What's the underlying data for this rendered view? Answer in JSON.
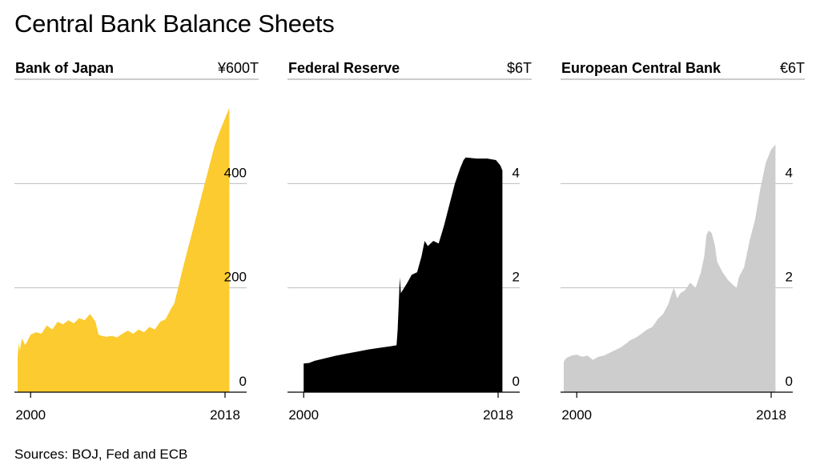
{
  "title": "Central Bank Balance Sheets",
  "source": "Sources: BOJ, Fed and ECB",
  "chart_data": [
    {
      "type": "area",
      "title": "Bank of Japan",
      "unit": "¥600T",
      "color": "#FCCB2F",
      "x_ticks": [
        "2000",
        "2018"
      ],
      "y_ticks": [
        "0",
        "200",
        "400"
      ],
      "ylim": [
        0,
        600
      ],
      "xlim": [
        1998.5,
        2020
      ],
      "x": [
        1998.8,
        1998.9,
        1999.0,
        1999.2,
        1999.5,
        2000.0,
        2000.5,
        2001.0,
        2001.5,
        2002.0,
        2002.5,
        2003.0,
        2003.5,
        2004.0,
        2004.5,
        2005.0,
        2005.5,
        2006.0,
        2006.3,
        2006.6,
        2007.0,
        2007.5,
        2008.0,
        2008.5,
        2009.0,
        2009.5,
        2010.0,
        2010.5,
        2011.0,
        2011.5,
        2012.0,
        2012.5,
        2013.0,
        2013.3,
        2013.6,
        2014.0,
        2014.5,
        2015.0,
        2015.5,
        2016.0,
        2016.5,
        2017.0,
        2017.5,
        2018.0,
        2018.4
      ],
      "values": [
        68,
        95,
        80,
        103,
        90,
        110,
        115,
        112,
        128,
        120,
        135,
        130,
        138,
        132,
        142,
        138,
        150,
        135,
        110,
        108,
        106,
        108,
        105,
        112,
        118,
        112,
        120,
        115,
        125,
        120,
        135,
        140,
        160,
        170,
        195,
        230,
        270,
        310,
        350,
        390,
        430,
        470,
        500,
        525,
        545
      ]
    },
    {
      "type": "area",
      "title": "Federal Reserve",
      "unit": "$6T",
      "color": "#000000",
      "x_ticks": [
        "2000",
        "2018"
      ],
      "y_ticks": [
        "0",
        "2",
        "4"
      ],
      "ylim": [
        0,
        6
      ],
      "xlim": [
        1998.5,
        2020
      ],
      "x": [
        2000.0,
        2000.5,
        2001.0,
        2002.0,
        2003.0,
        2004.0,
        2005.0,
        2006.0,
        2007.0,
        2008.0,
        2008.6,
        2008.7,
        2008.9,
        2009.0,
        2009.3,
        2009.6,
        2010.0,
        2010.5,
        2010.9,
        2011.2,
        2011.5,
        2012.0,
        2012.5,
        2013.0,
        2013.5,
        2014.0,
        2014.5,
        2014.8,
        2015.0,
        2016.0,
        2017.0,
        2017.8,
        2018.2,
        2018.4
      ],
      "values": [
        0.55,
        0.56,
        0.6,
        0.65,
        0.7,
        0.74,
        0.78,
        0.82,
        0.85,
        0.88,
        0.9,
        1.2,
        2.2,
        1.9,
        2.0,
        2.1,
        2.25,
        2.3,
        2.6,
        2.9,
        2.8,
        2.9,
        2.85,
        3.2,
        3.6,
        4.0,
        4.3,
        4.45,
        4.5,
        4.48,
        4.48,
        4.45,
        4.35,
        4.25
      ]
    },
    {
      "type": "area",
      "title": "European Central Bank",
      "unit": "€6T",
      "color": "#CDCDCD",
      "x_ticks": [
        "2000",
        "2018"
      ],
      "y_ticks": [
        "0",
        "2",
        "4"
      ],
      "ylim": [
        0,
        6
      ],
      "xlim": [
        1998.5,
        2020
      ],
      "x": [
        1998.8,
        1999.0,
        1999.5,
        2000.0,
        2000.5,
        2001.0,
        2001.5,
        2002.0,
        2002.5,
        2003.0,
        2003.5,
        2004.0,
        2004.5,
        2005.0,
        2005.5,
        2006.0,
        2006.5,
        2007.0,
        2007.5,
        2008.0,
        2008.5,
        2008.8,
        2009.0,
        2009.3,
        2009.6,
        2010.0,
        2010.5,
        2011.0,
        2011.5,
        2011.8,
        2012.0,
        2012.2,
        2012.5,
        2012.8,
        2013.0,
        2013.5,
        2014.0,
        2014.5,
        2014.8,
        2015.0,
        2015.5,
        2016.0,
        2016.5,
        2017.0,
        2017.5,
        2018.0,
        2018.4
      ],
      "values": [
        0.58,
        0.65,
        0.7,
        0.72,
        0.68,
        0.7,
        0.62,
        0.68,
        0.7,
        0.75,
        0.8,
        0.85,
        0.92,
        1.0,
        1.05,
        1.12,
        1.2,
        1.25,
        1.4,
        1.5,
        1.7,
        1.9,
        2.0,
        1.8,
        1.9,
        1.95,
        2.1,
        2.0,
        2.3,
        2.6,
        3.0,
        3.1,
        3.05,
        2.8,
        2.5,
        2.3,
        2.15,
        2.05,
        2.0,
        2.2,
        2.4,
        2.9,
        3.3,
        3.9,
        4.4,
        4.65,
        4.75
      ]
    }
  ]
}
